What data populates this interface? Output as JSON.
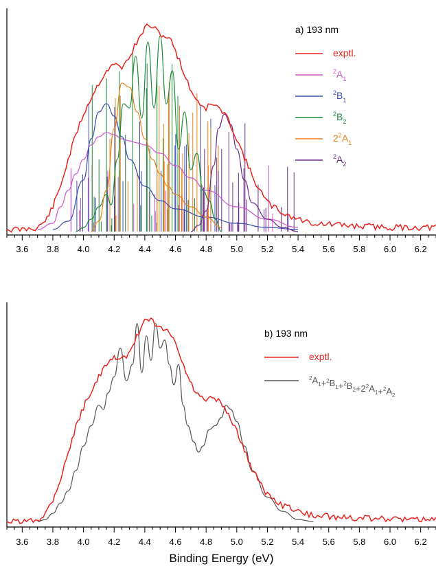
{
  "chart_data": [
    {
      "type": "line",
      "panel_label": "a) 193 nm",
      "xlabel": "",
      "xlim": [
        3.5,
        6.3
      ],
      "ylim": [
        0,
        1.0
      ],
      "xticks": [
        "3.6",
        "3.8",
        "4.0",
        "4.2",
        "4.4",
        "4.6",
        "4.8",
        "5.0",
        "5.2",
        "5.4",
        "5.6",
        "5.8",
        "6.0",
        "6.2"
      ],
      "legend_position": "top-right",
      "series": [
        {
          "name": "exptl.",
          "color": "#e8231f",
          "x": [
            3.5,
            3.6,
            3.7,
            3.75,
            3.8,
            3.85,
            3.9,
            3.95,
            4.0,
            4.05,
            4.1,
            4.15,
            4.2,
            4.25,
            4.28,
            4.32,
            4.36,
            4.4,
            4.44,
            4.48,
            4.52,
            4.56,
            4.6,
            4.64,
            4.68,
            4.72,
            4.76,
            4.8,
            4.84,
            4.88,
            4.92,
            4.96,
            5.0,
            5.05,
            5.1,
            5.15,
            5.2,
            5.3,
            5.4,
            5.5,
            5.7,
            6.0,
            6.3
          ],
          "y": [
            0.01,
            0.01,
            0.02,
            0.05,
            0.12,
            0.22,
            0.35,
            0.47,
            0.57,
            0.65,
            0.72,
            0.78,
            0.81,
            0.8,
            0.82,
            0.88,
            0.93,
            0.99,
            1.0,
            0.97,
            0.95,
            0.94,
            0.88,
            0.8,
            0.72,
            0.66,
            0.62,
            0.6,
            0.62,
            0.6,
            0.57,
            0.52,
            0.45,
            0.36,
            0.27,
            0.2,
            0.14,
            0.09,
            0.06,
            0.04,
            0.03,
            0.02,
            0.02
          ]
        },
        {
          "name": "²A₁",
          "label_base": "A",
          "label_sup": "2",
          "label_sub": "1",
          "color": "#cc55cc",
          "x": [
            3.7,
            3.8,
            3.85,
            3.9,
            3.95,
            4.0,
            4.05,
            4.1,
            4.15,
            4.2,
            4.25,
            4.3,
            4.35,
            4.4,
            4.5,
            4.6,
            4.7,
            4.8,
            5.0,
            5.2,
            5.4
          ],
          "y": [
            0.01,
            0.04,
            0.12,
            0.2,
            0.28,
            0.35,
            0.42,
            0.46,
            0.48,
            0.47,
            0.45,
            0.44,
            0.43,
            0.42,
            0.38,
            0.32,
            0.26,
            0.2,
            0.12,
            0.06,
            0.02
          ]
        },
        {
          "name": "²B₁",
          "label_base": "B",
          "label_sup": "2",
          "label_sub": "1",
          "color": "#3a4fb0",
          "x": [
            3.8,
            3.9,
            4.0,
            4.05,
            4.1,
            4.15,
            4.2,
            4.25,
            4.3,
            4.4,
            4.5,
            4.6,
            4.8,
            5.0,
            5.2,
            5.4
          ],
          "y": [
            0.01,
            0.05,
            0.25,
            0.45,
            0.58,
            0.62,
            0.56,
            0.46,
            0.35,
            0.22,
            0.15,
            0.11,
            0.07,
            0.04,
            0.02,
            0.01
          ]
        },
        {
          "name": "²B₂",
          "label_base": "B",
          "label_sup": "2",
          "label_sub": "2",
          "color": "#1f8a3a",
          "x": [
            3.95,
            4.0,
            4.05,
            4.1,
            4.15,
            4.18,
            4.22,
            4.26,
            4.3,
            4.34,
            4.38,
            4.42,
            4.46,
            4.5,
            4.54,
            4.58,
            4.62,
            4.66,
            4.7,
            4.74,
            4.78,
            4.82,
            4.86,
            4.9
          ],
          "y": [
            0.0,
            0.02,
            0.06,
            0.12,
            0.18,
            0.13,
            0.35,
            0.62,
            0.6,
            0.85,
            0.55,
            0.92,
            0.6,
            0.95,
            0.62,
            0.78,
            0.4,
            0.58,
            0.3,
            0.38,
            0.2,
            0.15,
            0.06,
            0.0
          ]
        },
        {
          "name": "2²A₁",
          "label_base": "A",
          "label_sup": "2",
          "label_sub": "1",
          "label_pre": "2",
          "color": "#e8821a",
          "x": [
            4.05,
            4.1,
            4.15,
            4.2,
            4.25,
            4.3,
            4.35,
            4.4,
            4.45,
            4.5,
            4.55,
            4.6,
            4.7,
            4.8,
            4.9
          ],
          "y": [
            0.0,
            0.05,
            0.2,
            0.5,
            0.72,
            0.7,
            0.58,
            0.45,
            0.35,
            0.28,
            0.22,
            0.18,
            0.12,
            0.07,
            0.02
          ]
        },
        {
          "name": "²A₂",
          "label_base": "A",
          "label_sup": "2",
          "label_sub": "2",
          "color": "#6a2a8a",
          "x": [
            4.7,
            4.75,
            4.8,
            4.85,
            4.88,
            4.92,
            4.96,
            5.0,
            5.05,
            5.1,
            5.2,
            5.3,
            5.4
          ],
          "y": [
            0.0,
            0.03,
            0.1,
            0.32,
            0.5,
            0.57,
            0.52,
            0.4,
            0.25,
            0.14,
            0.06,
            0.02,
            0.0
          ]
        }
      ]
    },
    {
      "type": "line",
      "panel_label": "b) 193 nm",
      "xlabel": "Binding Energy (eV)",
      "xlim": [
        3.5,
        6.3
      ],
      "ylim": [
        0,
        1.0
      ],
      "xticks": [
        "3.6",
        "3.8",
        "4.0",
        "4.2",
        "4.4",
        "4.6",
        "4.8",
        "5.0",
        "5.2",
        "5.4",
        "5.6",
        "5.8",
        "6.0",
        "6.2"
      ],
      "legend_position": "top-right",
      "series": [
        {
          "name": "exptl.",
          "color": "#e8231f",
          "x": [
            3.5,
            3.6,
            3.7,
            3.75,
            3.8,
            3.85,
            3.9,
            3.95,
            4.0,
            4.05,
            4.1,
            4.15,
            4.2,
            4.25,
            4.28,
            4.32,
            4.36,
            4.4,
            4.44,
            4.48,
            4.52,
            4.56,
            4.6,
            4.64,
            4.68,
            4.72,
            4.76,
            4.8,
            4.84,
            4.88,
            4.92,
            4.96,
            5.0,
            5.05,
            5.1,
            5.15,
            5.2,
            5.3,
            5.4,
            5.5,
            5.7,
            6.0,
            6.3
          ],
          "y": [
            0.01,
            0.01,
            0.02,
            0.05,
            0.12,
            0.22,
            0.35,
            0.47,
            0.57,
            0.65,
            0.72,
            0.78,
            0.81,
            0.8,
            0.82,
            0.88,
            0.93,
            0.99,
            1.0,
            0.97,
            0.95,
            0.94,
            0.88,
            0.8,
            0.72,
            0.66,
            0.62,
            0.6,
            0.62,
            0.6,
            0.57,
            0.52,
            0.45,
            0.36,
            0.27,
            0.2,
            0.14,
            0.09,
            0.06,
            0.04,
            0.03,
            0.02,
            0.02
          ]
        },
        {
          "name": "²A₁+²B₁+²B₂+2²A₁+²A₂",
          "label_parts": [
            [
              "",
              "2",
              "A",
              "1"
            ],
            [
              "+",
              "2",
              "B",
              "1"
            ],
            [
              "+",
              "2",
              "B",
              "2"
            ],
            [
              "+2",
              "2",
              "A",
              "1"
            ],
            [
              "+",
              "2",
              "A",
              "2"
            ]
          ],
          "color": "#555555",
          "x": [
            3.7,
            3.75,
            3.8,
            3.85,
            3.9,
            3.95,
            4.0,
            4.05,
            4.1,
            4.13,
            4.16,
            4.2,
            4.24,
            4.28,
            4.32,
            4.35,
            4.38,
            4.41,
            4.44,
            4.47,
            4.5,
            4.53,
            4.56,
            4.59,
            4.62,
            4.65,
            4.68,
            4.72,
            4.75,
            4.78,
            4.82,
            4.86,
            4.9,
            4.93,
            4.96,
            5.0,
            5.05,
            5.1,
            5.2,
            5.3,
            5.4,
            5.5
          ],
          "y": [
            0.01,
            0.02,
            0.05,
            0.1,
            0.16,
            0.26,
            0.38,
            0.48,
            0.58,
            0.56,
            0.64,
            0.72,
            0.86,
            0.7,
            0.78,
            0.98,
            0.74,
            0.92,
            0.8,
            0.98,
            0.86,
            0.9,
            0.78,
            0.68,
            0.78,
            0.58,
            0.48,
            0.4,
            0.35,
            0.38,
            0.46,
            0.48,
            0.52,
            0.58,
            0.56,
            0.5,
            0.38,
            0.26,
            0.13,
            0.06,
            0.02,
            0.01
          ]
        }
      ]
    }
  ]
}
